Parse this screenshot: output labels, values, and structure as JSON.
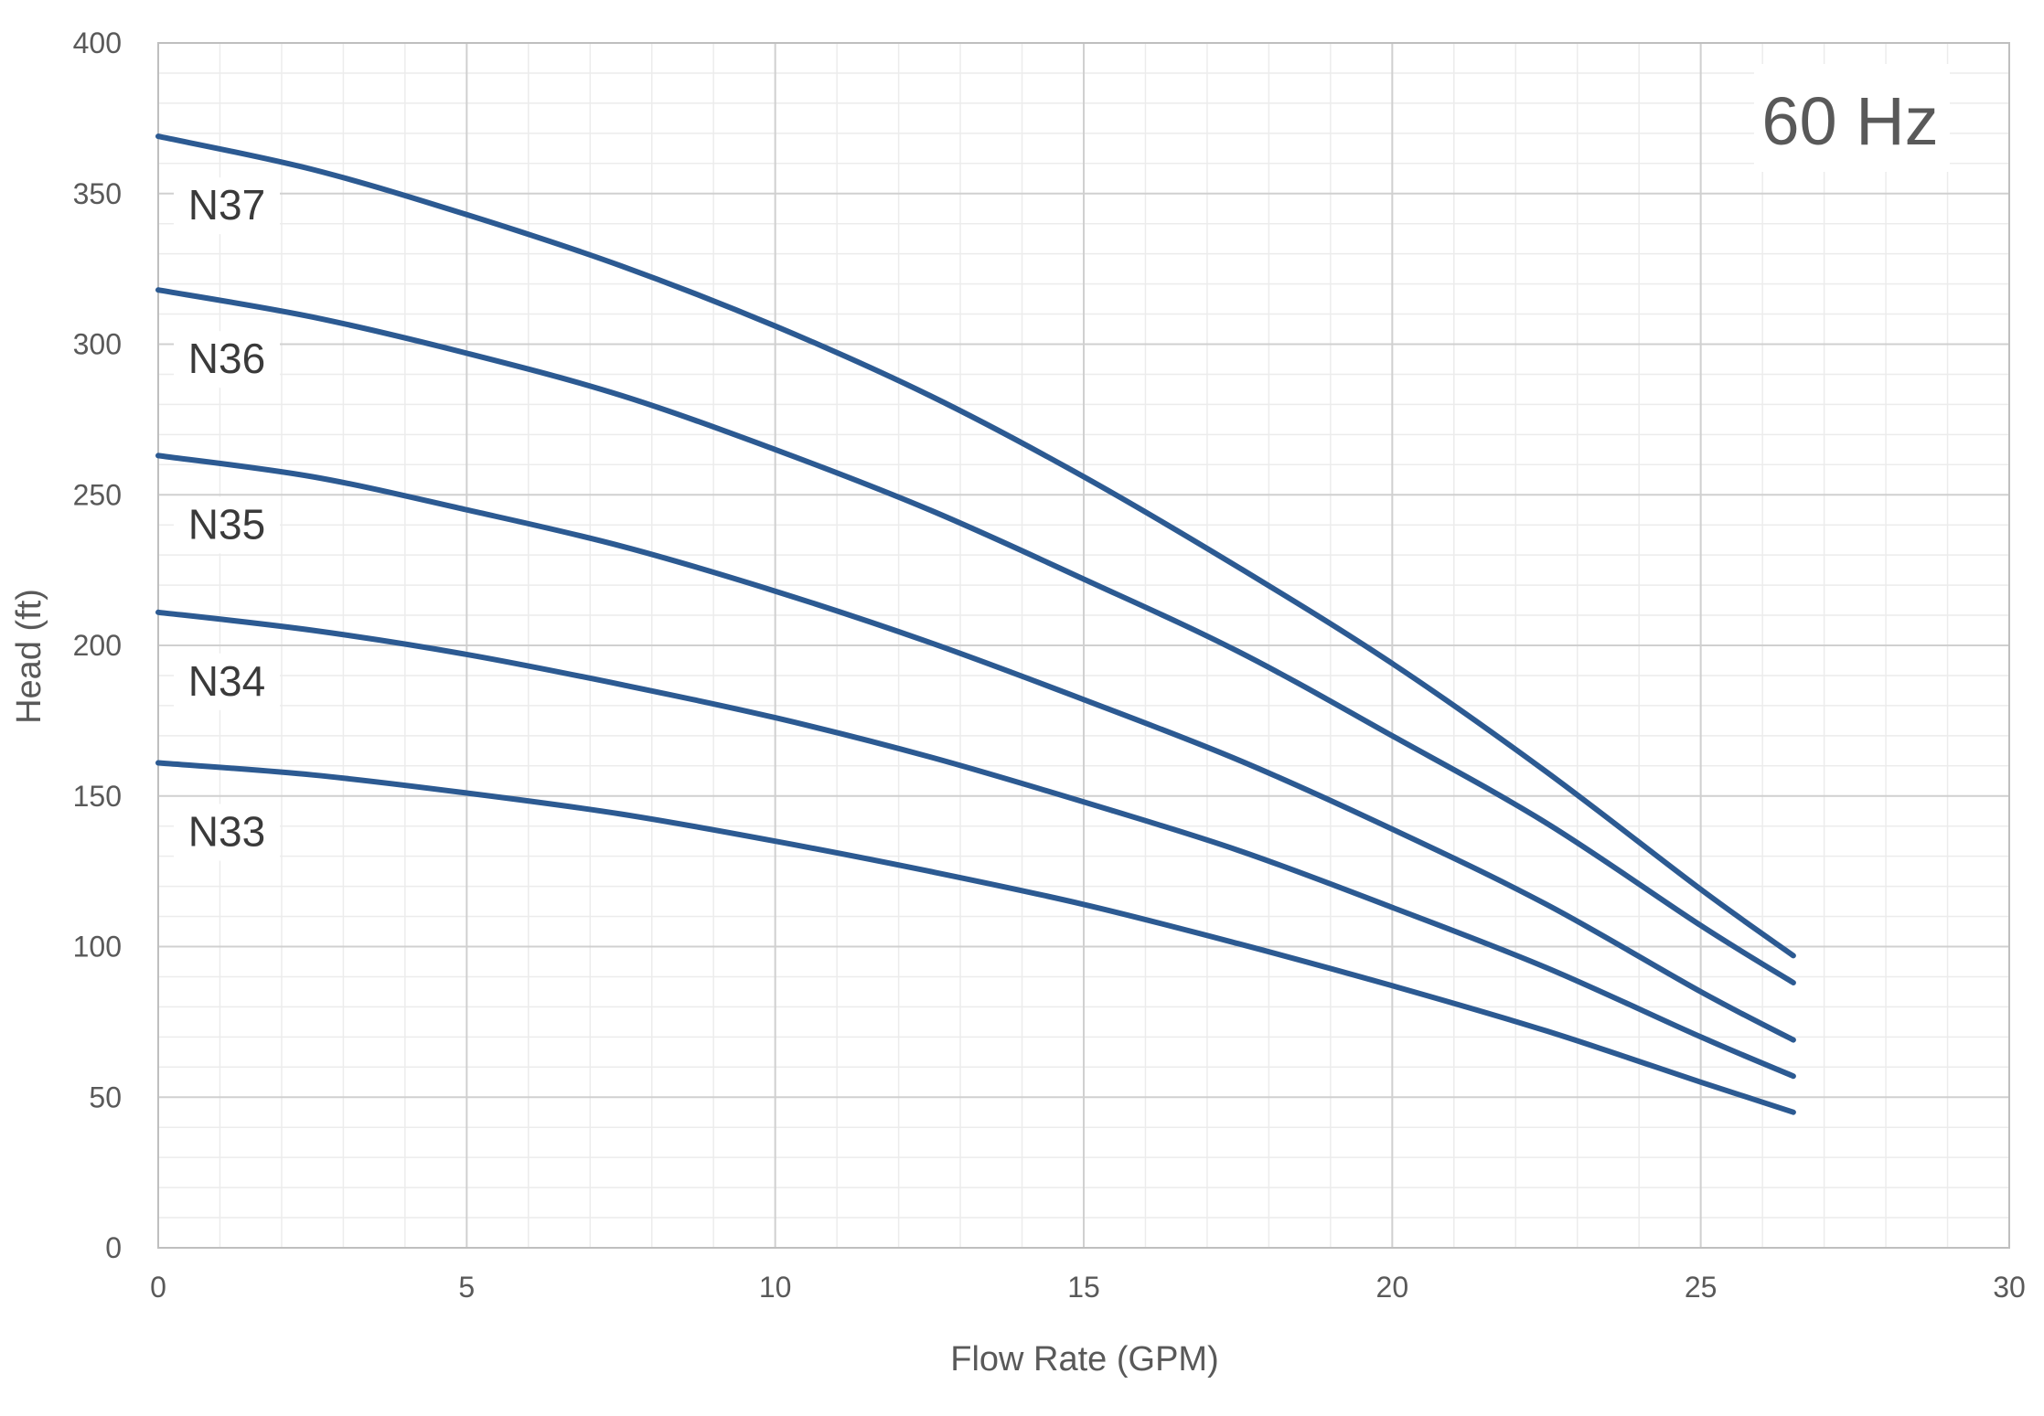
{
  "chart_data": {
    "type": "line",
    "title": "",
    "xlabel": "Flow Rate (GPM)",
    "ylabel": "Head (ft)",
    "xlim": [
      0,
      30
    ],
    "ylim": [
      0,
      400
    ],
    "x_ticks": [
      0,
      5,
      10,
      15,
      20,
      25,
      30
    ],
    "y_ticks": [
      0,
      50,
      100,
      150,
      200,
      250,
      300,
      350,
      400
    ],
    "x_minor_step": 1,
    "y_minor_step": 10,
    "grid": true,
    "legend": "none",
    "annotation": "60 Hz",
    "line_color": "#2c5a92",
    "major_grid_color": "#d0d0d0",
    "minor_grid_color": "#ececec",
    "series": [
      {
        "name": "N37",
        "x": [
          0,
          2.5,
          5,
          7.5,
          10,
          12.5,
          15,
          17.5,
          20,
          22.5,
          25,
          26.5
        ],
        "values": [
          369,
          358,
          343,
          326,
          306,
          283,
          256,
          226,
          194,
          158,
          119,
          97
        ]
      },
      {
        "name": "N36",
        "x": [
          0,
          2.5,
          5,
          7.5,
          10,
          12.5,
          15,
          17.5,
          20,
          22.5,
          25,
          26.5
        ],
        "values": [
          318,
          309,
          297,
          283,
          265,
          245,
          222,
          198,
          170,
          141,
          107,
          88
        ]
      },
      {
        "name": "N35",
        "x": [
          0,
          2.5,
          5,
          7.5,
          10,
          12.5,
          15,
          17.5,
          20,
          22.5,
          25,
          26.5
        ],
        "values": [
          263,
          256,
          245,
          233,
          218,
          201,
          182,
          162,
          139,
          114,
          85,
          69
        ]
      },
      {
        "name": "N34",
        "x": [
          0,
          2.5,
          5,
          7.5,
          10,
          12.5,
          15,
          17.5,
          20,
          22.5,
          25,
          26.5
        ],
        "values": [
          211,
          205,
          197,
          187,
          176,
          163,
          148,
          132,
          113,
          93,
          70,
          57
        ]
      },
      {
        "name": "N33",
        "x": [
          0,
          2.5,
          5,
          7.5,
          10,
          12.5,
          15,
          17.5,
          20,
          22.5,
          25,
          26.5
        ],
        "values": [
          161,
          157,
          151,
          144,
          135,
          125,
          114,
          101,
          87,
          72,
          55,
          45
        ]
      }
    ]
  }
}
